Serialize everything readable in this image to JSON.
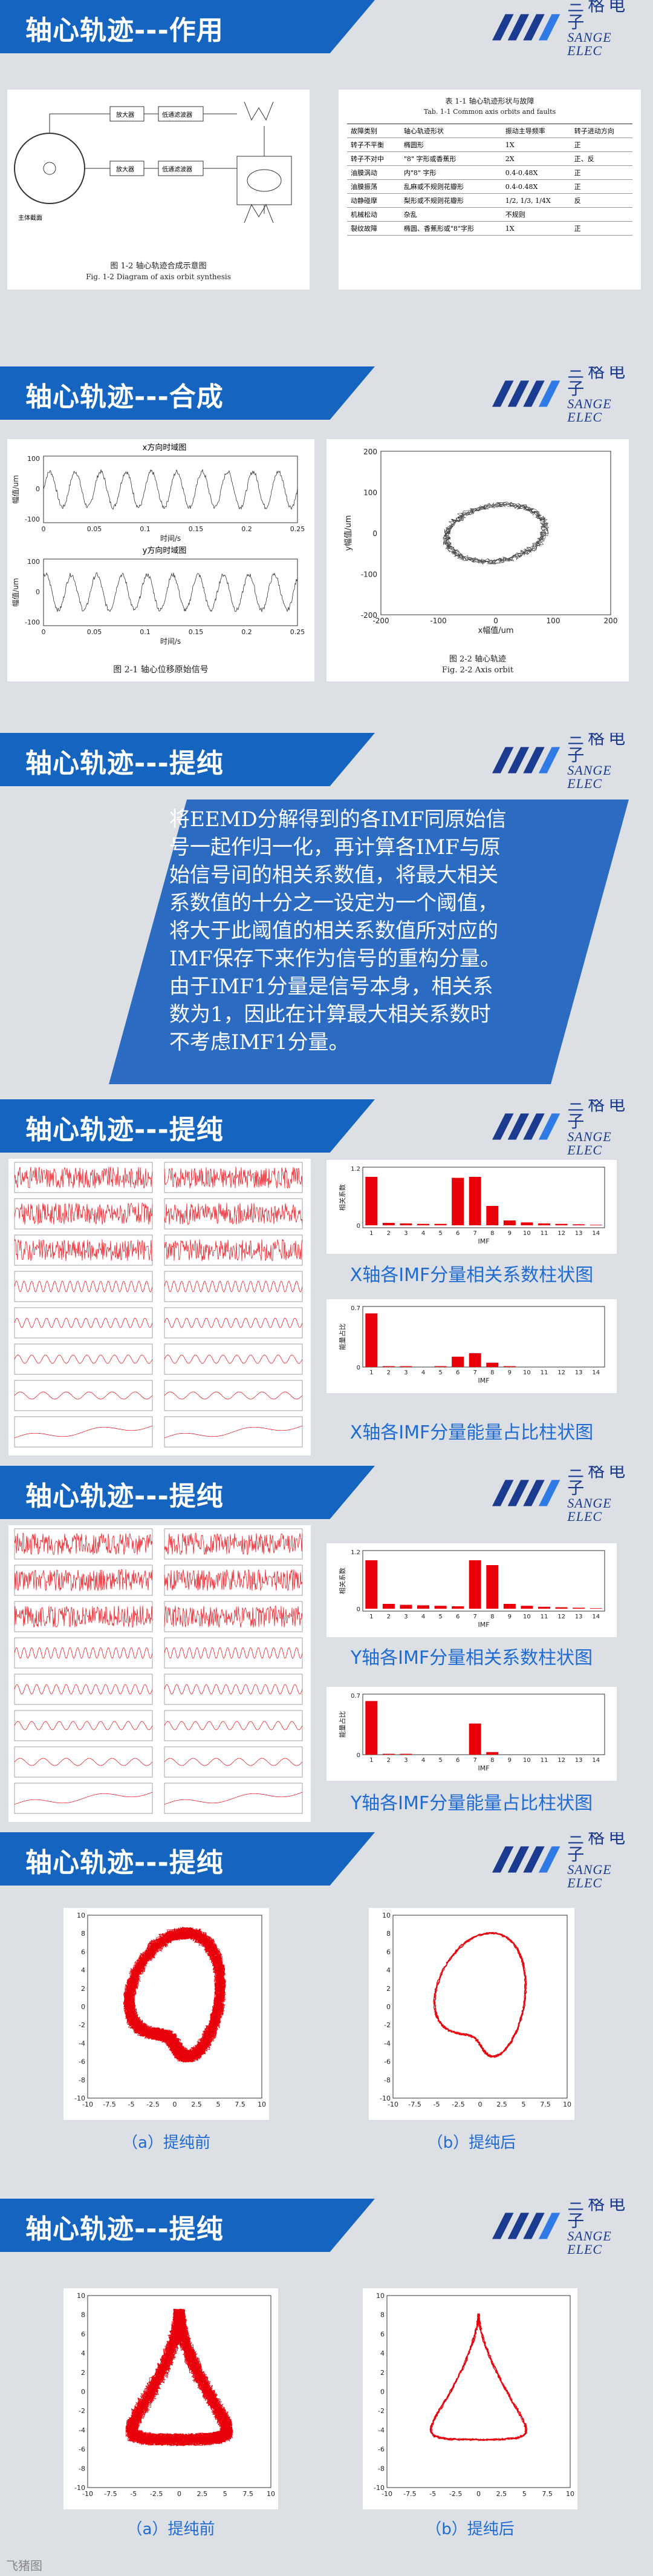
{
  "brand": {
    "cn": "三格电子",
    "en": "SANGE ELEC"
  },
  "slides": [
    {
      "title": "轴心轨迹---作用",
      "fig_left": {
        "labels": [
          "主体截面",
          "放大器",
          "低通滤波器",
          "放大器",
          "低通滤波器"
        ],
        "caption_cn": "图 1-2  轴心轨迹合成示意图",
        "caption_en": "Fig. 1-2 Diagram of axis orbit synthesis"
      },
      "table": {
        "title_cn": "表 1-1 轴心轨迹形状与故障",
        "title_en": "Tab. 1-1 Common axis orbits and faults",
        "header": [
          "故障类别",
          "轴心轨迹形状",
          "振动主导频率",
          "转子进动方向"
        ],
        "rows": [
          [
            "转子不平衡",
            "椭圆形",
            "1X",
            "正"
          ],
          [
            "转子不对中",
            "\"8\" 字形或香蕉形",
            "2X",
            "正、反"
          ],
          [
            "油膜涡动",
            "内\"8\" 字形",
            "0.4-0.48X",
            "正"
          ],
          [
            "油膜振荡",
            "乱麻或不规则花瓣形",
            "0.4-0.48X",
            "正"
          ],
          [
            "动静碰摩",
            "梨形或不规则花瓣形",
            "1/2, 1/3, 1/4X",
            "反"
          ],
          [
            "机械松动",
            "杂乱",
            "不规则",
            ""
          ],
          [
            "裂纹故障",
            "椭圆、香蕉形或\"8\"字形",
            "1X",
            "正"
          ]
        ]
      }
    },
    {
      "title": "轴心轨迹---合成",
      "fig_left": {
        "top_title": "x方向时域图",
        "bottom_title": "y方向时域图",
        "ylabel": "幅值/um",
        "xlabel": "时间/s",
        "xticks": [
          "0",
          "0.05",
          "0.1",
          "0.15",
          "0.2",
          "0.25"
        ],
        "yticks": [
          "100",
          "0",
          "-100"
        ],
        "caption": "图 2-1  轴心位移原始信号"
      },
      "fig_right": {
        "xlabel": "x幅值/um",
        "ylabel": "y幅值/um",
        "xticks": [
          "-200",
          "-100",
          "0",
          "100",
          "200"
        ],
        "yticks": [
          "200",
          "100",
          "0",
          "-100",
          "-200"
        ],
        "caption_cn": "图 2-2  轴心轨迹",
        "caption_en": "Fig. 2-2 Axis orbit"
      }
    },
    {
      "title": "轴心轨迹---提纯",
      "paragraph": "将EEMD分解得到的各IMF同原始信号一起作归一化，再计算各IMF与原始信号间的相关系数值，将最大相关系数值的十分之一设定为一个阈值，将大于此阈值的相关系数值所对应的IMF保存下来作为信号的重构分量。由于IMF1分量是信号本身，相关系数为1，因此在计算最大相关系数时不考虑IMF1分量。"
    },
    {
      "title": "轴心轨迹---提纯",
      "corr_caption": "X轴各IMF分量相关系数柱状图",
      "energy_caption": "X轴各IMF分量能量占比柱状图"
    },
    {
      "title": "轴心轨迹---提纯",
      "corr_caption": "Y轴各IMF分量相关系数柱状图",
      "energy_caption": "Y轴各IMF分量能量占比柱状图"
    },
    {
      "title": "轴心轨迹---提纯",
      "before": "（a）提纯前",
      "after": "（b）提纯后"
    },
    {
      "title": "轴心轨迹---提纯",
      "before": "（a）提纯前",
      "after": "（b）提纯后"
    }
  ],
  "bar_axis": {
    "xlabel": "IMF",
    "corr_ylabel": "相关系数",
    "energy_ylabel": "能量占比",
    "corr_yticks": [
      "1.2",
      "1",
      "0.8",
      "0.6",
      "0.4",
      "0.2",
      "0",
      "-0.05"
    ],
    "y_corr_yticks": [
      "1.2",
      "1",
      "0.8",
      "0.6",
      "0.4",
      "0.2",
      "0",
      "-0.05"
    ]
  },
  "orbit_axis": {
    "ticks": [
      "-10",
      "-7.5",
      "-5",
      "-2.5",
      "0",
      "2.5",
      "5",
      "7.5",
      "10"
    ],
    "yticks": [
      "10",
      "8",
      "6",
      "4",
      "2",
      "0",
      "-2",
      "-4",
      "-6",
      "-8",
      "-10"
    ]
  },
  "chart_data": [
    {
      "type": "bar",
      "title": "X轴各IMF分量相关系数柱状图",
      "xlabel": "IMF",
      "ylabel": "相关系数",
      "categories": [
        "1",
        "2",
        "3",
        "4",
        "5",
        "6",
        "7",
        "8",
        "9",
        "10",
        "11",
        "12",
        "13",
        "14"
      ],
      "values": [
        1.0,
        0.05,
        0.04,
        0.03,
        0.03,
        0.98,
        1.0,
        0.4,
        0.1,
        0.06,
        0.04,
        0.03,
        0.02,
        0.01
      ],
      "ylim": [
        -0.05,
        1.2
      ]
    },
    {
      "type": "bar",
      "title": "X轴各IMF分量能量占比柱状图",
      "xlabel": "IMF",
      "ylabel": "能量占比",
      "categories": [
        "1",
        "2",
        "3",
        "4",
        "5",
        "6",
        "7",
        "8",
        "9",
        "10",
        "11",
        "12",
        "13",
        "14"
      ],
      "values": [
        0.62,
        0.01,
        0.01,
        0.0,
        0.01,
        0.12,
        0.16,
        0.05,
        0.01,
        0.0,
        0.0,
        0.0,
        0.0,
        0.0
      ],
      "ylim": [
        0,
        0.7
      ]
    },
    {
      "type": "bar",
      "title": "Y轴各IMF分量相关系数柱状图",
      "xlabel": "IMF",
      "ylabel": "相关系数",
      "categories": [
        "1",
        "2",
        "3",
        "4",
        "5",
        "6",
        "7",
        "8",
        "9",
        "10",
        "11",
        "12",
        "13",
        "14"
      ],
      "values": [
        1.0,
        0.1,
        0.08,
        0.07,
        0.06,
        0.05,
        1.0,
        0.9,
        0.1,
        0.06,
        0.04,
        0.03,
        0.02,
        0.01
      ],
      "ylim": [
        -0.05,
        1.2
      ]
    },
    {
      "type": "bar",
      "title": "Y轴各IMF分量能量占比柱状图",
      "xlabel": "IMF",
      "ylabel": "能量占比",
      "categories": [
        "1",
        "2",
        "3",
        "4",
        "5",
        "6",
        "7",
        "8",
        "9",
        "10",
        "11",
        "12",
        "13",
        "14"
      ],
      "values": [
        0.62,
        0.01,
        0.01,
        0.0,
        0.0,
        0.0,
        0.36,
        0.03,
        0.0,
        0.0,
        0.0,
        0.0,
        0.0,
        0.0
      ],
      "ylim": [
        0,
        0.7
      ]
    }
  ],
  "colors": {
    "banner": "#1565c0",
    "accent_red": "#e8000b",
    "caption_blue": "#1e6bd6"
  },
  "watermark": "飞猪图"
}
